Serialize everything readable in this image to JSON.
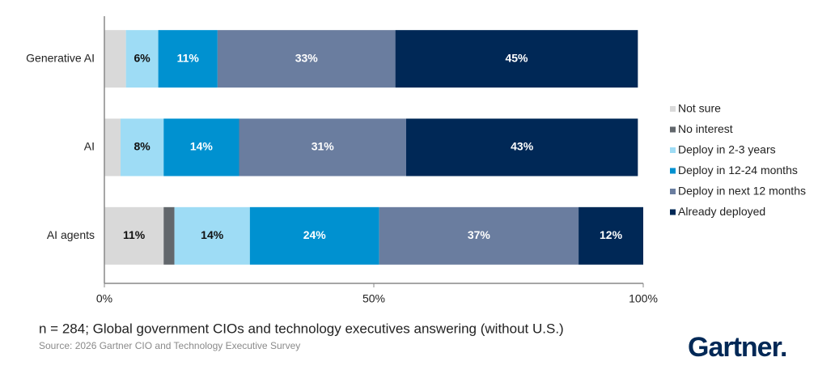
{
  "chart_data": {
    "type": "stacked-barh",
    "categories": [
      "Generative AI",
      "AI",
      "AI agents"
    ],
    "series": [
      {
        "name": "Not sure",
        "color": "#d9d9d9",
        "values": [
          4,
          3,
          11
        ],
        "value_labels": [
          null,
          null,
          "11%"
        ]
      },
      {
        "name": "No interest",
        "color": "#62676c",
        "values": [
          0,
          0,
          2
        ]
      },
      {
        "name": "Deploy in 2-3 years",
        "color": "#9edcf5",
        "values": [
          6,
          8,
          14
        ],
        "value_labels": [
          "6%",
          "8%",
          "14%"
        ]
      },
      {
        "name": "Deploy in 12-24 months",
        "color": "#0091d0",
        "values": [
          11,
          14,
          24
        ],
        "value_labels": [
          "11%",
          "14%",
          "24%"
        ]
      },
      {
        "name": "Deploy in next 12 months",
        "color": "#6a7d9f",
        "values": [
          33,
          31,
          37
        ],
        "value_labels": [
          "33%",
          "31%",
          "37%"
        ]
      },
      {
        "name": "Already deployed",
        "color": "#002856",
        "values": [
          45,
          43,
          12
        ],
        "value_labels": [
          "45%",
          "43%",
          "12%"
        ]
      }
    ],
    "xlim": [
      0,
      100
    ],
    "xticks": [
      {
        "value": 0,
        "label": "0%"
      },
      {
        "value": 50,
        "label": "50%"
      },
      {
        "value": 100,
        "label": "100%"
      }
    ],
    "legend": "right",
    "footnote": "n = 284; Global government CIOs and technology executives answering (without U.S.)",
    "source": "Source: 2026 Gartner CIO and Technology Executive Survey",
    "logo": "Gartner."
  }
}
